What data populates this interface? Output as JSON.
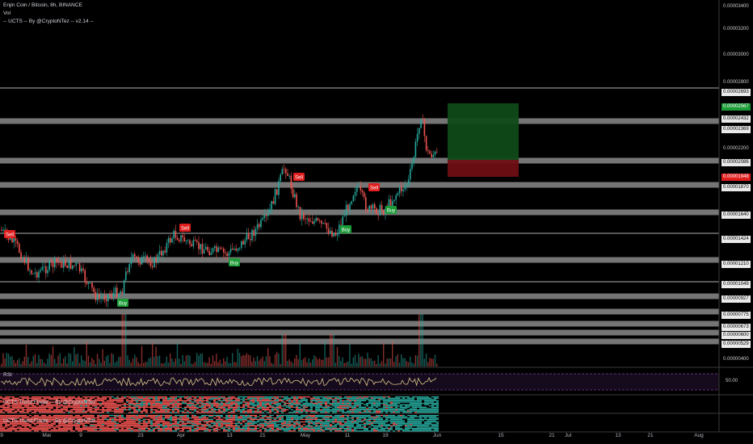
{
  "colors": {
    "background": "#000000",
    "band": "#8a8a8a",
    "candle_up": "#26a69a",
    "candle_down": "#ef5350",
    "buy": "#1c9b37",
    "sell": "#e01e1e",
    "rsi_line": "#d8c68b",
    "rsi_band": "#7b3b9e",
    "target_zone": "#0f4a18",
    "stop_zone": "#6e0f13"
  },
  "legend": {
    "symbol": "Enjin Coin / Bitcoin, 8h, BINANCE",
    "volume": "Vol",
    "indicator": "-- UCTS -- By @CryptoNTez -- v2.14 --"
  },
  "price_axis": {
    "labels": [
      {
        "text": "0.00003400",
        "style": "plain"
      },
      {
        "text": "0.00003200",
        "style": "plain"
      },
      {
        "text": "0.00003000",
        "style": "plain"
      },
      {
        "text": "0.00002800",
        "style": "plain"
      },
      {
        "text": "0.00002693",
        "style": "box"
      },
      {
        "text": "0.00002567",
        "style": "green"
      },
      {
        "text": "0.00002432",
        "style": "box"
      },
      {
        "text": "0.00002369",
        "style": "box"
      },
      {
        "text": "0.00002200",
        "style": "plain"
      },
      {
        "text": "0.00002086",
        "style": "box"
      },
      {
        "text": "0.00001948",
        "style": "red"
      },
      {
        "text": "0.00001870",
        "style": "box"
      },
      {
        "text": "0.00001640",
        "style": "box"
      },
      {
        "text": "0.00001424",
        "style": "box"
      },
      {
        "text": "0.00001210",
        "style": "box"
      },
      {
        "text": "0.00001049",
        "style": "box"
      },
      {
        "text": "0.00000927",
        "style": "box"
      },
      {
        "text": "0.00000775",
        "style": "box"
      },
      {
        "text": "0.00000673",
        "style": "box"
      },
      {
        "text": "0.00000600",
        "style": "box"
      },
      {
        "text": "0.00000529",
        "style": "box"
      },
      {
        "text": "0.00000400",
        "style": "plain"
      }
    ]
  },
  "signals": [
    {
      "type": "sell",
      "label": "Sell"
    },
    {
      "type": "sell",
      "label": "Sell"
    },
    {
      "type": "sell",
      "label": "Sell"
    },
    {
      "type": "sell",
      "label": "Sell"
    },
    {
      "type": "buy",
      "label": "Buy"
    },
    {
      "type": "buy",
      "label": "Buy"
    },
    {
      "type": "buy",
      "label": "Buy"
    },
    {
      "type": "buy",
      "label": "Buy"
    }
  ],
  "rsi": {
    "title": "RSI",
    "level_label": "50.00"
  },
  "trend_panes": [
    {
      "title": "UCTS Trend Finder -- By @CryptoNTez"
    },
    {
      "title": "UCTS Trend Finder -- By @CryptoNTez"
    }
  ],
  "time_axis": {
    "labels": [
      "9",
      "Mar",
      "9",
      "23",
      "Apr",
      "13",
      "21",
      "May",
      "11",
      "19",
      "Jun",
      "15",
      "21",
      "Jul",
      "13",
      "21",
      "Aug"
    ]
  }
}
